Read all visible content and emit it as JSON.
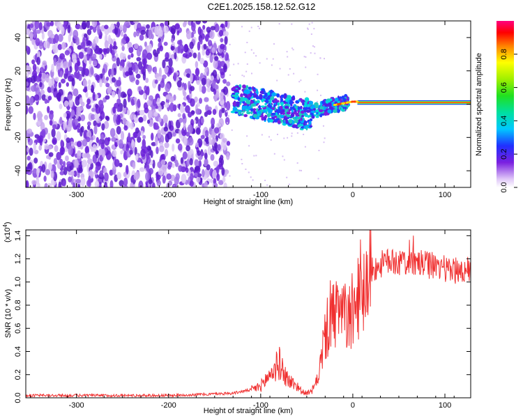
{
  "title": "C2E1.2025.158.12.52.G12",
  "chart_data": [
    {
      "type": "heatmap",
      "xlabel": "Height of straight line (km)",
      "ylabel": "Frequency (Hz)",
      "xlim": [
        -355,
        128
      ],
      "ylim": [
        -50,
        50
      ],
      "xticks": [
        -300,
        -200,
        -100,
        0,
        100
      ],
      "yticks": [
        -40,
        -20,
        0,
        20,
        40
      ],
      "colorbar": {
        "label": "Normalized spectral amplitude",
        "range": [
          0,
          1
        ],
        "ticks": [
          "0.0",
          "0.2",
          "0.4",
          "0.6",
          "0.8"
        ],
        "tick_values": [
          0,
          0.2,
          0.4,
          0.6,
          0.8
        ]
      },
      "ridge": {
        "x": [
          -130,
          -110,
          -90,
          -70,
          -55,
          -45,
          -35,
          -25,
          -15,
          -5,
          0,
          5,
          10,
          128
        ],
        "y": [
          3,
          1,
          -1,
          -4,
          -6,
          -5,
          -3,
          -1,
          0,
          1,
          1.5,
          1.5,
          1,
          1
        ]
      }
    },
    {
      "type": "line",
      "xlabel": "Height of straight line (km)",
      "ylabel": "SNR (10 * v/v)",
      "multiplier": "(x10",
      "multiplier_exp": "4",
      "multiplier_close": ")",
      "xlim": [
        -355,
        128
      ],
      "ylim": [
        0,
        1.45
      ],
      "xticks": [
        -300,
        -200,
        -100,
        0,
        100
      ],
      "yticks": [
        "0.0",
        "0.2",
        "0.4",
        "0.6",
        "0.8",
        "1.0",
        "1.2",
        "1.4"
      ],
      "ytick_values": [
        0,
        0.2,
        0.4,
        0.6,
        0.8,
        1.0,
        1.2,
        1.4
      ],
      "color": "#f03030",
      "series": [
        {
          "x": [
            -355,
            -300,
            -250,
            -200,
            -160,
            -130,
            -110,
            -100,
            -90,
            -85,
            -80,
            -75,
            -70,
            -60,
            -55,
            -50,
            -45,
            -40,
            -35,
            -30,
            -25,
            -20,
            -15,
            -10,
            -5,
            0,
            5,
            10,
            20,
            30,
            40,
            60,
            80,
            100,
            110,
            128
          ],
          "y": [
            0.02,
            0.02,
            0.02,
            0.02,
            0.03,
            0.04,
            0.07,
            0.1,
            0.2,
            0.25,
            0.3,
            0.22,
            0.15,
            0.1,
            0.05,
            0.04,
            0.05,
            0.12,
            0.3,
            0.55,
            0.65,
            0.7,
            0.75,
            0.7,
            0.7,
            0.75,
            0.85,
            0.95,
            1.1,
            1.15,
            1.18,
            1.17,
            1.15,
            1.12,
            1.1,
            1.1
          ]
        }
      ]
    }
  ]
}
